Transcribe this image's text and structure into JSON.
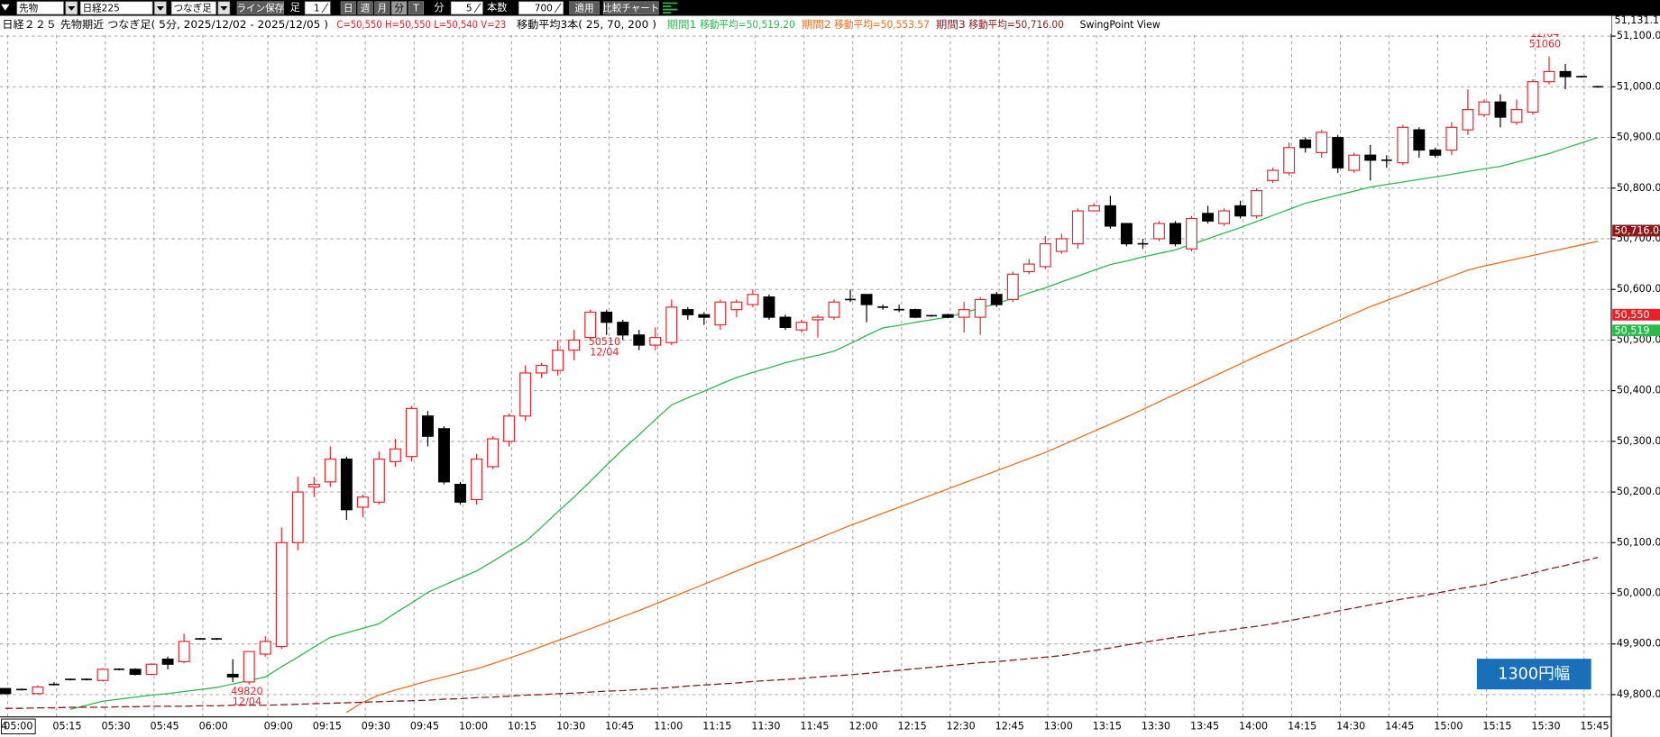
{
  "toolbar": {
    "symbol_type": "先物",
    "symbol": "日経225",
    "chart_kind": "つなぎ足",
    "save_button": "ライン保存",
    "bar_label": "足",
    "bar_count_input": 1,
    "day": "日",
    "week": "週",
    "month": "月",
    "minute": "分",
    "tick": "T",
    "minute_unit": "分",
    "interval": 5,
    "count_label": "本数",
    "count": 700,
    "apply": "適用",
    "compare": "比較チャート"
  },
  "chart_data": {
    "type": "candlestick",
    "title": "日経２２５ 先物期近 つなぎ足( 5分, 2025/12/02 - 2025/12/05 )",
    "ohlc_summary": "C=50,550 H=50,550 L=50,540 V=23",
    "ma_title": "移動平均3本( 25, 70, 200 )",
    "swing_title": "SwingPoint View",
    "date_fragment": "4",
    "range_badge": "1300円幅",
    "categories": [
      null,
      "05:00",
      null,
      null,
      "05:15",
      null,
      null,
      "05:30",
      null,
      null,
      "05:45",
      null,
      null,
      "06:00",
      null,
      null,
      null,
      "09:00",
      null,
      null,
      "09:15",
      null,
      null,
      "09:30",
      null,
      null,
      "09:45",
      null,
      null,
      "10:00",
      null,
      null,
      "10:15",
      null,
      null,
      "10:30",
      null,
      null,
      "10:45",
      null,
      null,
      "11:00",
      null,
      null,
      "11:15",
      null,
      null,
      "11:30",
      null,
      null,
      "11:45",
      null,
      null,
      "12:00",
      null,
      null,
      "12:15",
      null,
      null,
      "12:30",
      null,
      null,
      "12:45",
      null,
      null,
      "13:00",
      null,
      null,
      "13:15",
      null,
      null,
      "13:30",
      null,
      null,
      "13:45",
      null,
      null,
      "14:00",
      null,
      null,
      "14:15",
      null,
      null,
      "14:30",
      null,
      null,
      "14:45",
      null,
      null,
      "15:00",
      null,
      null,
      "15:15",
      null,
      null,
      "15:30",
      null,
      null,
      "15:45"
    ],
    "open": [
      49812,
      49810,
      49802,
      49820,
      49830,
      49830,
      49828,
      49850,
      49850,
      49840,
      49870,
      49865,
      49910,
      49910,
      49840,
      49825,
      49880,
      49895,
      50100,
      50210,
      50220,
      50265,
      50170,
      50180,
      50260,
      50270,
      50350,
      50325,
      50215,
      50185,
      50250,
      50300,
      50350,
      50435,
      50440,
      50480,
      50505,
      50555,
      50535,
      50510,
      50490,
      50495,
      50560,
      50550,
      50530,
      50560,
      50570,
      50585,
      50545,
      50520,
      50540,
      50545,
      50580,
      50590,
      50565,
      50560,
      50560,
      50548,
      50550,
      50545,
      50545,
      50590,
      50580,
      50635,
      50645,
      50675,
      50690,
      50755,
      50765,
      50730,
      50690,
      50700,
      50730,
      50680,
      50750,
      50730,
      50765,
      50745,
      50815,
      50830,
      50895,
      50870,
      50900,
      50835,
      50865,
      50855,
      50850,
      50915,
      50875,
      50875,
      50915,
      50945,
      50970,
      50930,
      50950,
      51010,
      51030,
      51020,
      51000
    ],
    "high": [
      49813,
      49812,
      49818,
      49825,
      49832,
      49832,
      49852,
      49852,
      49852,
      49862,
      49875,
      49920,
      49912,
      49912,
      49870,
      49885,
      49915,
      50130,
      50230,
      50230,
      50290,
      50270,
      50195,
      50280,
      50305,
      50370,
      50360,
      50330,
      50220,
      50275,
      50310,
      50355,
      50450,
      50455,
      50500,
      50520,
      50560,
      50560,
      50540,
      50520,
      50525,
      50580,
      50565,
      50555,
      50580,
      50580,
      50600,
      50590,
      50550,
      50540,
      50550,
      50580,
      50600,
      50590,
      50570,
      50570,
      50562,
      50550,
      50552,
      50575,
      50585,
      50595,
      50635,
      50660,
      50705,
      50710,
      50760,
      50770,
      50785,
      50730,
      50700,
      50735,
      50735,
      50745,
      50765,
      50760,
      50775,
      50800,
      50840,
      50890,
      50900,
      50915,
      50905,
      50870,
      50885,
      50865,
      50925,
      50920,
      50880,
      50930,
      50995,
      50975,
      50985,
      50975,
      51015,
      51060,
      51045,
      51022,
      51002
    ],
    "low": [
      49800,
      49808,
      49800,
      49818,
      49828,
      49828,
      49826,
      49848,
      49838,
      49838,
      49850,
      49862,
      49908,
      49908,
      49825,
      49820,
      49875,
      49890,
      50085,
      50190,
      50210,
      50145,
      50150,
      50175,
      50250,
      50260,
      50290,
      50215,
      50175,
      50175,
      50245,
      50290,
      50340,
      50425,
      50430,
      50460,
      50500,
      50510,
      50500,
      50480,
      50480,
      50490,
      50540,
      50530,
      50520,
      50545,
      50565,
      50540,
      50520,
      50515,
      50505,
      50540,
      50575,
      50535,
      50560,
      50555,
      50543,
      50546,
      50543,
      50515,
      50510,
      50565,
      50575,
      50630,
      50640,
      50670,
      50680,
      50755,
      50720,
      50685,
      50680,
      50695,
      50685,
      50675,
      50730,
      50725,
      50740,
      50740,
      50810,
      50825,
      50870,
      50860,
      50830,
      50830,
      50815,
      50840,
      50845,
      50860,
      50860,
      50865,
      50905,
      50940,
      50920,
      50925,
      50945,
      51005,
      50995,
      51018,
      50998
    ],
    "close": [
      49802,
      49810,
      49815,
      49820,
      49830,
      49830,
      49850,
      49850,
      49840,
      49860,
      49860,
      49905,
      49910,
      49910,
      49835,
      49885,
      49905,
      50100,
      50200,
      50215,
      50265,
      50165,
      50190,
      50265,
      50285,
      50365,
      50310,
      50220,
      50180,
      50265,
      50305,
      50350,
      50435,
      50450,
      50480,
      50500,
      50555,
      50535,
      50510,
      50490,
      50505,
      50565,
      50550,
      50545,
      50575,
      50575,
      50590,
      50545,
      50525,
      50535,
      50545,
      50575,
      50580,
      50570,
      50565,
      50560,
      50545,
      50548,
      50545,
      50560,
      50580,
      50570,
      50630,
      50650,
      50690,
      50700,
      50755,
      50765,
      50725,
      50690,
      50690,
      50730,
      50690,
      50740,
      50735,
      50755,
      50745,
      50795,
      50835,
      50880,
      50880,
      50910,
      50840,
      50865,
      50855,
      50855,
      50920,
      50875,
      50865,
      50920,
      50955,
      50970,
      50940,
      50955,
      51010,
      51030,
      51020,
      51020,
      51000
    ],
    "up_color": "#e8202a",
    "down_color": "#000000",
    "series": [
      {
        "name": "期間1",
        "legend_value": "移動平均=50,519.20",
        "color": "#2db84d",
        "values": [
          null,
          null,
          null,
          null,
          49771,
          49779,
          49787,
          49791,
          49795,
          49799,
          49802,
          49806,
          49810,
          49814,
          49821,
          49828,
          49835,
          49855,
          49874,
          49894,
          49913,
          49922,
          49931,
          49940,
          49961,
          49981,
          50002,
          50016,
          50030,
          50044,
          50063,
          50083,
          50102,
          50131,
          50161,
          50190,
          50221,
          50253,
          50284,
          50313,
          50343,
          50372,
          50386,
          50399,
          50413,
          50426,
          50436,
          50445,
          50455,
          50463,
          50470,
          50478,
          50493,
          50509,
          50524,
          50529,
          50535,
          50540,
          50545,
          50554,
          50563,
          50572,
          50582,
          50593,
          50603,
          50615,
          50626,
          50638,
          50649,
          50656,
          50664,
          50671,
          50678,
          50689,
          50700,
          50711,
          50722,
          50734,
          50746,
          50758,
          50770,
          50778,
          50786,
          50794,
          50802,
          50807,
          50812,
          50817,
          50822,
          50827,
          50833,
          50838,
          50843,
          50851,
          50860,
          50868,
          50879,
          50889,
          50900
        ]
      },
      {
        "name": "期間2",
        "legend_value": "移動平均=50,553.57",
        "color": "#f26b1d",
        "values": [
          null,
          null,
          null,
          null,
          null,
          null,
          null,
          null,
          null,
          null,
          null,
          null,
          null,
          null,
          null,
          null,
          null,
          null,
          null,
          null,
          null,
          49765,
          49785,
          49799,
          49809,
          49818,
          49827,
          49835,
          49843,
          49851,
          49861,
          49872,
          49883,
          49895,
          49907,
          49918,
          49930,
          49942,
          49954,
          49966,
          49979,
          49992,
          50005,
          50018,
          50031,
          50044,
          50057,
          50069,
          50082,
          50095,
          50108,
          50121,
          50134,
          50146,
          50158,
          50170,
          50182,
          50194,
          50206,
          50218,
          50230,
          50242,
          50254,
          50266,
          50278,
          50292,
          50306,
          50320,
          50334,
          50348,
          50363,
          50378,
          50393,
          50408,
          50423,
          50438,
          50453,
          50468,
          50482,
          50496,
          50510,
          50524,
          50538,
          50552,
          50566,
          50578,
          50590,
          50602,
          50614,
          50626,
          50638,
          50646,
          50653,
          50660,
          50667,
          50674,
          50681,
          50688,
          50695
        ]
      },
      {
        "name": "期間3",
        "legend_value": "移動平均=50,716.00",
        "color": "#8b1a1a",
        "dashed": true,
        "values": [
          49773,
          49773,
          49774,
          49774,
          49775,
          49775,
          49775,
          49776,
          49776,
          49777,
          49777,
          49777,
          49778,
          49778,
          49779,
          49779,
          49779,
          49780,
          49781,
          49782,
          49783,
          49784,
          49785,
          49786,
          49787,
          49788,
          49789,
          49791,
          49792,
          49794,
          49795,
          49797,
          49799,
          49800,
          49802,
          49803,
          49805,
          49807,
          49808,
          49810,
          49812,
          49814,
          49817,
          49819,
          49821,
          49823,
          49826,
          49828,
          49830,
          49832,
          49835,
          49837,
          49839,
          49842,
          49845,
          49848,
          49851,
          49854,
          49857,
          49860,
          49863,
          49865,
          49868,
          49871,
          49874,
          49877,
          49882,
          49887,
          49892,
          49898,
          49903,
          49908,
          49913,
          49917,
          49922,
          49926,
          49931,
          49935,
          49940,
          49946,
          49952,
          49958,
          49965,
          49971,
          49977,
          49983,
          49989,
          49994,
          50000,
          50006,
          50012,
          50017,
          50025,
          50032,
          50040,
          50048,
          50055,
          50063,
          50071
        ]
      }
    ],
    "swing_highs": [
      {
        "value": 51060,
        "date": "12/04"
      }
    ],
    "swing_lows": [
      {
        "value": 50510,
        "date": "12/04"
      },
      {
        "value": 49820,
        "date": "12/04"
      }
    ],
    "price_tags": [
      {
        "value": 51131.1,
        "label": "51,131.1",
        "color": "#ffffff"
      },
      {
        "value": 50716,
        "label": "50,716.0",
        "color": "#8b1a1a"
      },
      {
        "value": 50550,
        "label": "50,550",
        "color": "#e8202a"
      },
      {
        "value": 50519,
        "label": "50,519",
        "color": "#2db84d"
      }
    ],
    "ylim": [
      49756,
      51140
    ],
    "yticks": [
      {
        "value": 49800,
        "label": "49,800.00"
      },
      {
        "value": 49900,
        "label": "49,900.00"
      },
      {
        "value": 50000,
        "label": "50,000.00"
      },
      {
        "value": 50100,
        "label": "50,100.00"
      },
      {
        "value": 50200,
        "label": "50,200.00"
      },
      {
        "value": 50300,
        "label": "50,300.00"
      },
      {
        "value": 50400,
        "label": "50,400.00"
      },
      {
        "value": 50500,
        "label": "50,500.00"
      },
      {
        "value": 50600,
        "label": "50,600.00"
      },
      {
        "value": 50700,
        "label": "50,700.00"
      },
      {
        "value": 50800,
        "label": "50,800.00"
      },
      {
        "value": 50900,
        "label": "50,900.00"
      },
      {
        "value": 51000,
        "label": "51,000.00"
      },
      {
        "value": 51100,
        "label": "51,100.00"
      }
    ],
    "grid": true
  }
}
